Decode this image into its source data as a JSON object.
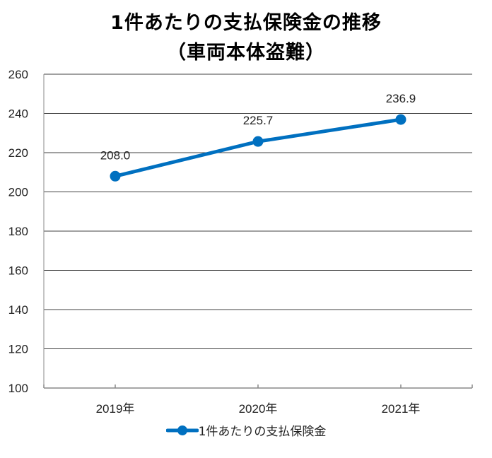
{
  "chart_data": {
    "type": "line",
    "title": "1件あたりの支払保険金の推移",
    "subtitle": "（車両本体盗難）",
    "categories": [
      "2019年",
      "2020年",
      "2021年"
    ],
    "series": [
      {
        "name": "1件あたりの支払保険金",
        "values": [
          208.0,
          225.7,
          236.9
        ],
        "data_labels": [
          "208.0",
          "225.7",
          "236.9"
        ],
        "color": "#0070C0"
      }
    ],
    "ylim": [
      100,
      260
    ],
    "yticks": [
      "100",
      "120",
      "140",
      "160",
      "180",
      "200",
      "220",
      "240",
      "260"
    ],
    "xlabel": "",
    "ylabel": "",
    "grid": true,
    "gridColor": "#404040",
    "legend": "bottom"
  }
}
